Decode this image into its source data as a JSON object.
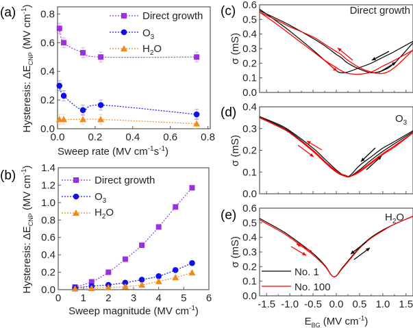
{
  "chart_data": [
    {
      "panel": "(a)",
      "type": "scatter",
      "xlabel": {
        "main": "Sweep rate  (MV cm",
        "sup1": "-1",
        "mid": "s",
        "sup2": "-1",
        "end": ")"
      },
      "ylabel": {
        "main": "Hysteresis: ΔE",
        "sub": "CNP",
        "end": " (MV cm",
        "sup": "-1",
        "close": ")"
      },
      "xlim": [
        0,
        0.8
      ],
      "ylim": [
        0,
        0.85
      ],
      "xticks": [
        "0.0",
        "0.2",
        "0.4",
        "0.6",
        "0.8"
      ],
      "yticks": [
        "0.0",
        "0.2",
        "0.4",
        "0.6",
        "0.8"
      ],
      "x": [
        0.01,
        0.033,
        0.135,
        0.23,
        0.74
      ],
      "series": [
        {
          "name": "Direct growth",
          "color": "#9b30e0",
          "marker": "square",
          "values": [
            0.7,
            0.6,
            0.53,
            0.5,
            0.5
          ],
          "error": 0.035
        },
        {
          "name": "O3",
          "name_main": "O",
          "name_sub": "3",
          "color": "#1010e8",
          "marker": "circle",
          "values": [
            0.3,
            0.23,
            0.13,
            0.165,
            0.1
          ],
          "error": 0.035
        },
        {
          "name": "H2O",
          "name_main": "H",
          "name_sub": "2",
          "name_end": "O",
          "color": "#f08a1c",
          "marker": "triangle",
          "values": [
            0.065,
            0.065,
            0.065,
            0.065,
            0.035
          ],
          "error": 0.035
        }
      ],
      "legend": "top-right",
      "grid": false
    },
    {
      "panel": "(b)",
      "type": "scatter",
      "xlabel": {
        "main": "Sweep magnitude (MV cm",
        "sup1": "-1",
        "end": ")"
      },
      "ylabel": {
        "main": "Hysteresis: ΔE",
        "sub": "CNP",
        "end": " (MV cm",
        "sup": "-1",
        "close": ")"
      },
      "xlim": [
        0,
        6
      ],
      "ylim": [
        0,
        1.4
      ],
      "xticks": [
        "0",
        "1",
        "2",
        "3",
        "4",
        "5",
        "6"
      ],
      "yticks": [
        "0.0",
        "0.2",
        "0.4",
        "0.6",
        "0.8",
        "1.0",
        "1.2",
        "1.4"
      ],
      "x": [
        0.67,
        1.33,
        2.0,
        2.67,
        3.33,
        4.0,
        4.67,
        5.33
      ],
      "series": [
        {
          "name": "Direct growth",
          "color": "#9b30e0",
          "marker": "square",
          "values": [
            0.03,
            0.09,
            0.2,
            0.35,
            0.51,
            0.72,
            0.95,
            1.17
          ],
          "error": 0.025
        },
        {
          "name": "O3",
          "name_main": "O",
          "name_sub": "3",
          "color": "#1010e8",
          "marker": "circle",
          "values": [
            0.02,
            0.04,
            0.055,
            0.08,
            0.115,
            0.155,
            0.225,
            0.305
          ],
          "error": 0.025
        },
        {
          "name": "H2O",
          "name_main": "H",
          "name_sub": "2",
          "name_end": "O",
          "color": "#f08a1c",
          "marker": "triangle",
          "values": [
            0.01,
            0.015,
            0.025,
            0.035,
            0.055,
            0.095,
            0.14,
            0.195
          ],
          "error": 0.025
        }
      ],
      "legend": "top-left",
      "grid": false
    },
    {
      "panel": "(c)",
      "type": "line",
      "title": "Direct growth",
      "ylabel": "σ (mS)",
      "xlim": [
        -1.65,
        1.65
      ],
      "ylim": [
        0,
        0.6
      ],
      "yticks": [
        "0.0",
        "0.1",
        "0.2",
        "0.3",
        "0.4",
        "0.5",
        "0.6"
      ],
      "x": [
        -1.65,
        -1.25,
        -1,
        -0.5,
        -0.25,
        0,
        0.1,
        0.25,
        0.5,
        0.75,
        1,
        1.25,
        1.65
      ],
      "series": [
        {
          "color": "#000000",
          "values": [
            0.57,
            0.48,
            0.42,
            0.29,
            0.22,
            0.15,
            0.135,
            0.14,
            0.17,
            0.2,
            0.24,
            0.28,
            0.35
          ]
        },
        {
          "color": "#000000",
          "values": [
            0.56,
            0.5,
            0.46,
            0.37,
            0.32,
            0.26,
            0.24,
            0.2,
            0.16,
            0.135,
            0.15,
            0.2,
            0.34
          ]
        },
        {
          "color": "#ff0000",
          "values": [
            0.55,
            0.46,
            0.4,
            0.28,
            0.22,
            0.17,
            0.15,
            0.13,
            0.125,
            0.14,
            0.18,
            0.22,
            0.29
          ]
        },
        {
          "color": "#ff0000",
          "values": [
            0.55,
            0.49,
            0.45,
            0.38,
            0.33,
            0.28,
            0.26,
            0.22,
            0.17,
            0.14,
            0.13,
            0.17,
            0.29
          ]
        }
      ]
    },
    {
      "panel": "(d)",
      "type": "line",
      "title_main": "O",
      "title_sub": "3",
      "ylabel": "σ (mS)",
      "xlim": [
        -1.65,
        1.65
      ],
      "ylim": [
        0,
        0.4
      ],
      "yticks": [
        "0.0",
        "0.1",
        "0.2",
        "0.3",
        "0.4"
      ],
      "x": [
        -1.65,
        -1.25,
        -1,
        -0.5,
        -0.25,
        0,
        0.2,
        0.3,
        0.5,
        0.75,
        1,
        1.25,
        1.65
      ],
      "series": [
        {
          "color": "#000000",
          "values": [
            0.355,
            0.32,
            0.29,
            0.21,
            0.16,
            0.11,
            0.08,
            0.085,
            0.13,
            0.17,
            0.21,
            0.24,
            0.29
          ]
        },
        {
          "color": "#000000",
          "values": [
            0.355,
            0.315,
            0.285,
            0.2,
            0.15,
            0.1,
            0.08,
            0.08,
            0.11,
            0.155,
            0.195,
            0.23,
            0.285
          ]
        },
        {
          "color": "#ff0000",
          "values": [
            0.35,
            0.31,
            0.28,
            0.195,
            0.145,
            0.1,
            0.085,
            0.08,
            0.105,
            0.145,
            0.185,
            0.22,
            0.28
          ]
        },
        {
          "color": "#ff0000",
          "values": [
            0.35,
            0.31,
            0.28,
            0.2,
            0.15,
            0.105,
            0.08,
            0.08,
            0.1,
            0.14,
            0.18,
            0.215,
            0.28
          ]
        }
      ]
    },
    {
      "panel": "(e)",
      "type": "line",
      "title_main": "H",
      "title_sub": "2",
      "title_end": "O",
      "ylabel": "σ (mS)",
      "xlim": [
        -1.65,
        1.65
      ],
      "ylim": [
        0,
        0.6
      ],
      "yticks": [
        "0.0",
        "0.1",
        "0.2",
        "0.3",
        "0.4",
        "0.5",
        "0.6"
      ],
      "xticks": [
        "-1.5",
        "-1.0",
        "-0.5",
        "0.0",
        "0.5",
        "1.0",
        "1.5"
      ],
      "xlabel": {
        "main": "E",
        "sub": "BG",
        "end": " (MV cm",
        "sup": "-1",
        "close": ")"
      },
      "x": [
        -1.65,
        -1.25,
        -1,
        -0.5,
        -0.25,
        -0.05,
        0.15,
        0.5,
        0.75,
        1,
        1.25,
        1.65
      ],
      "series": [
        {
          "name": "No. 1",
          "color": "#000000",
          "values": [
            0.53,
            0.46,
            0.41,
            0.29,
            0.21,
            0.13,
            0.2,
            0.33,
            0.4,
            0.45,
            0.49,
            0.545
          ]
        },
        {
          "name": "No. 100",
          "color": "#ff0000",
          "values": [
            0.52,
            0.45,
            0.4,
            0.28,
            0.205,
            0.13,
            0.195,
            0.325,
            0.395,
            0.445,
            0.49,
            0.545
          ]
        }
      ],
      "legend": "bottom-left"
    }
  ]
}
